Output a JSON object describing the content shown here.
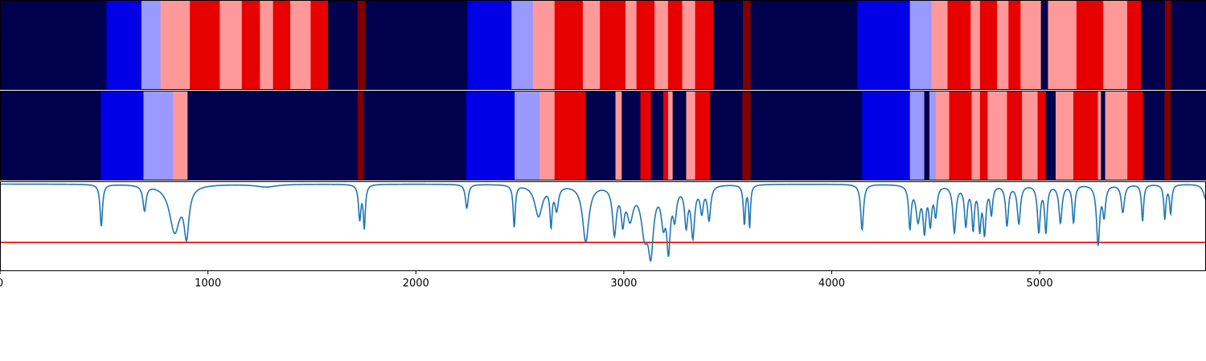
{
  "chart_data": {
    "type": "heatmap",
    "description_free": true,
    "xlim": [
      0,
      5800
    ],
    "xticks": [
      0,
      1000,
      2000,
      3000,
      4000,
      5000
    ],
    "xtick_labels": [
      "0",
      "1000",
      "2000",
      "3000",
      "4000",
      "5000"
    ],
    "color_classes": {
      "0": "#00004c",
      "1": "#0000e6",
      "2": "#9999ff",
      "3": "#ff9999",
      "4": "#e60000",
      "5": "#800000"
    },
    "tracks": [
      {
        "segments": [
          [
            0,
            512,
            0
          ],
          [
            512,
            680,
            1
          ],
          [
            680,
            772,
            2
          ],
          [
            772,
            913,
            3
          ],
          [
            913,
            1057,
            4
          ],
          [
            1057,
            1163,
            3
          ],
          [
            1163,
            1250,
            4
          ],
          [
            1250,
            1313,
            3
          ],
          [
            1313,
            1396,
            4
          ],
          [
            1396,
            1494,
            3
          ],
          [
            1494,
            1578,
            4
          ],
          [
            1578,
            1720,
            0
          ],
          [
            1720,
            1758,
            5
          ],
          [
            1758,
            2248,
            0
          ],
          [
            2248,
            2460,
            1
          ],
          [
            2460,
            2563,
            2
          ],
          [
            2563,
            2667,
            3
          ],
          [
            2667,
            2803,
            4
          ],
          [
            2803,
            2885,
            3
          ],
          [
            2885,
            3008,
            4
          ],
          [
            3008,
            3061,
            3
          ],
          [
            3061,
            3148,
            4
          ],
          [
            3148,
            3213,
            3
          ],
          [
            3213,
            3281,
            4
          ],
          [
            3281,
            3343,
            3
          ],
          [
            3343,
            3432,
            4
          ],
          [
            3432,
            3573,
            0
          ],
          [
            3573,
            3610,
            5
          ],
          [
            3610,
            4123,
            0
          ],
          [
            4123,
            4376,
            1
          ],
          [
            4376,
            4480,
            2
          ],
          [
            4480,
            4557,
            3
          ],
          [
            4557,
            4668,
            4
          ],
          [
            4668,
            4713,
            3
          ],
          [
            4713,
            4795,
            4
          ],
          [
            4795,
            4850,
            3
          ],
          [
            4850,
            4908,
            4
          ],
          [
            4908,
            5006,
            3
          ],
          [
            5006,
            5040,
            0
          ],
          [
            5040,
            5177,
            3
          ],
          [
            5177,
            5306,
            4
          ],
          [
            5306,
            5421,
            3
          ],
          [
            5421,
            5487,
            4
          ],
          [
            5487,
            5602,
            0
          ],
          [
            5602,
            5632,
            5
          ],
          [
            5632,
            5800,
            0
          ]
        ]
      },
      {
        "segments": [
          [
            0,
            485,
            0
          ],
          [
            485,
            690,
            1
          ],
          [
            690,
            833,
            2
          ],
          [
            833,
            902,
            3
          ],
          [
            902,
            1720,
            0
          ],
          [
            1720,
            1750,
            5
          ],
          [
            1750,
            2242,
            0
          ],
          [
            2242,
            2475,
            1
          ],
          [
            2475,
            2595,
            2
          ],
          [
            2595,
            2667,
            3
          ],
          [
            2667,
            2817,
            4
          ],
          [
            2817,
            2960,
            0
          ],
          [
            2960,
            2990,
            3
          ],
          [
            2990,
            3080,
            0
          ],
          [
            3080,
            3130,
            4
          ],
          [
            3130,
            3190,
            0
          ],
          [
            3190,
            3213,
            4
          ],
          [
            3213,
            3235,
            3
          ],
          [
            3235,
            3300,
            0
          ],
          [
            3300,
            3343,
            3
          ],
          [
            3343,
            3415,
            4
          ],
          [
            3415,
            3570,
            0
          ],
          [
            3570,
            3610,
            5
          ],
          [
            3610,
            4146,
            0
          ],
          [
            4146,
            4376,
            1
          ],
          [
            4376,
            4445,
            2
          ],
          [
            4445,
            4470,
            0
          ],
          [
            4470,
            4500,
            2
          ],
          [
            4500,
            4565,
            3
          ],
          [
            4565,
            4673,
            4
          ],
          [
            4673,
            4713,
            3
          ],
          [
            4713,
            4750,
            4
          ],
          [
            4750,
            4843,
            3
          ],
          [
            4843,
            4915,
            4
          ],
          [
            4915,
            4990,
            3
          ],
          [
            4990,
            5030,
            4
          ],
          [
            5030,
            5077,
            0
          ],
          [
            5077,
            5162,
            3
          ],
          [
            5162,
            5280,
            4
          ],
          [
            5280,
            5295,
            3
          ],
          [
            5295,
            5315,
            0
          ],
          [
            5315,
            5422,
            3
          ],
          [
            5422,
            5497,
            4
          ],
          [
            5497,
            5600,
            0
          ],
          [
            5600,
            5630,
            5
          ],
          [
            5630,
            5800,
            0
          ]
        ]
      }
    ],
    "line": {
      "color": "#1f77b4",
      "ylim": [
        0,
        1
      ],
      "baseline": 0.97,
      "dips": [
        [
          487,
          0.47,
          7
        ],
        [
          695,
          0.28,
          9
        ],
        [
          840,
          0.52,
          30
        ],
        [
          897,
          0.52,
          14
        ],
        [
          1280,
          0.03,
          60
        ],
        [
          1730,
          0.38,
          7
        ],
        [
          1752,
          0.47,
          6
        ],
        [
          2245,
          0.27,
          8
        ],
        [
          2473,
          0.47,
          6
        ],
        [
          2590,
          0.35,
          22
        ],
        [
          2650,
          0.42,
          6
        ],
        [
          2677,
          0.26,
          10
        ],
        [
          2817,
          0.63,
          18
        ],
        [
          2955,
          0.52,
          11
        ],
        [
          2995,
          0.36,
          9
        ],
        [
          3030,
          0.34,
          18
        ],
        [
          3100,
          0.48,
          20
        ],
        [
          3130,
          0.66,
          15
        ],
        [
          3190,
          0.36,
          12
        ],
        [
          3215,
          0.66,
          10
        ],
        [
          3245,
          0.32,
          10
        ],
        [
          3300,
          0.42,
          9
        ],
        [
          3332,
          0.55,
          10
        ],
        [
          3375,
          0.28,
          9
        ],
        [
          3410,
          0.38,
          9
        ],
        [
          3580,
          0.44,
          6
        ],
        [
          3605,
          0.47,
          5
        ],
        [
          4146,
          0.51,
          8
        ],
        [
          4376,
          0.47,
          7
        ],
        [
          4415,
          0.38,
          12
        ],
        [
          4446,
          0.48,
          8
        ],
        [
          4474,
          0.41,
          8
        ],
        [
          4500,
          0.32,
          8
        ],
        [
          4590,
          0.52,
          9
        ],
        [
          4645,
          0.44,
          8
        ],
        [
          4680,
          0.47,
          7
        ],
        [
          4712,
          0.46,
          7
        ],
        [
          4735,
          0.52,
          8
        ],
        [
          4768,
          0.31,
          7
        ],
        [
          4843,
          0.45,
          8
        ],
        [
          4900,
          0.43,
          9
        ],
        [
          4996,
          0.52,
          8
        ],
        [
          5030,
          0.52,
          7
        ],
        [
          5100,
          0.42,
          9
        ],
        [
          5163,
          0.42,
          7
        ],
        [
          5281,
          0.66,
          9
        ],
        [
          5310,
          0.33,
          8
        ],
        [
          5400,
          0.31,
          9
        ],
        [
          5495,
          0.41,
          6
        ],
        [
          5602,
          0.38,
          6
        ],
        [
          5630,
          0.32,
          6
        ],
        [
          5800,
          0.17,
          14
        ]
      ]
    },
    "threshold": {
      "value": 0.32,
      "color": "#ff0000"
    }
  }
}
